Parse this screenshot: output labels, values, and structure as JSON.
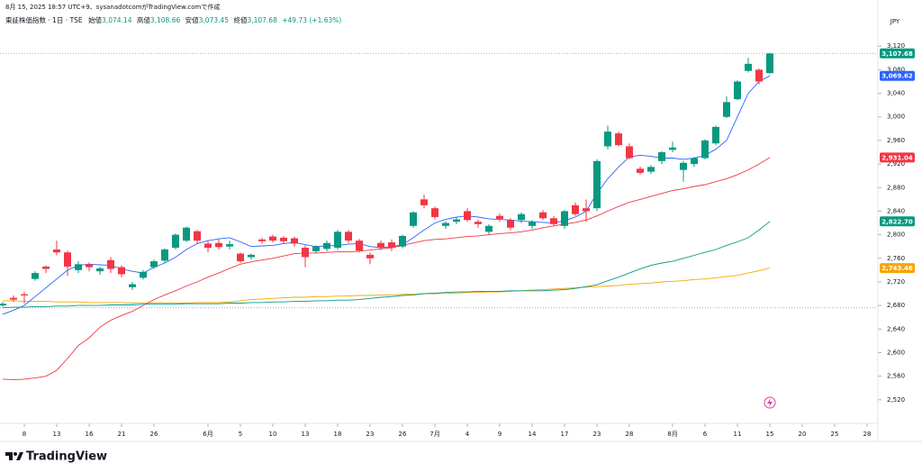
{
  "header": {
    "created": "8月 15, 2025 18:57 UTC+9、sysanadotcomがTradingView.comで作成"
  },
  "legend": {
    "open_label": "始値",
    "open_value": "3,074.14",
    "high_label": "高値",
    "high_value": "3,108.66",
    "low_label": "安値",
    "low_value": "3,073.45",
    "close_label": "終値",
    "close_value": "3,107.68",
    "change": "+49.73 (+1.63%)"
  },
  "footer": {
    "logo_text": "TradingView"
  },
  "chart_data": {
    "type": "candlestick",
    "title": "東証株価指数 · 1日 · TSE",
    "currency": "JPY",
    "up_color": "#089981",
    "down_color": "#f23645",
    "last_label": "3,107.68",
    "reference_line": 2676,
    "grid": false,
    "ylim": [
      2480,
      3183
    ],
    "yticks": [
      {
        "value": 2520,
        "label": "2,520"
      },
      {
        "value": 2560,
        "label": "2,560"
      },
      {
        "value": 2600,
        "label": "2,600"
      },
      {
        "value": 2640,
        "label": "2,640"
      },
      {
        "value": 2680,
        "label": "2,680"
      },
      {
        "value": 2720,
        "label": "2,720"
      },
      {
        "value": 2760,
        "label": "2,760"
      },
      {
        "value": 2800,
        "label": "2,800"
      },
      {
        "value": 2840,
        "label": "2,840"
      },
      {
        "value": 2880,
        "label": "2,880"
      },
      {
        "value": 2920,
        "label": "2,920"
      },
      {
        "value": 2960,
        "label": "2,960"
      },
      {
        "value": 3000,
        "label": "3,000"
      },
      {
        "value": 3040,
        "label": "3,040"
      },
      {
        "value": 3080,
        "label": "3,080"
      },
      {
        "value": 3120,
        "label": "3,120"
      }
    ],
    "categories": [
      null,
      null,
      "8",
      null,
      null,
      "13",
      null,
      null,
      "16",
      null,
      null,
      "21",
      null,
      null,
      "26",
      null,
      null,
      null,
      null,
      "6月",
      null,
      null,
      "5",
      null,
      null,
      "10",
      null,
      null,
      "13",
      null,
      null,
      "18",
      null,
      null,
      "23",
      null,
      null,
      "26",
      null,
      null,
      "7月",
      null,
      null,
      "4",
      null,
      null,
      "9",
      null,
      null,
      "14",
      null,
      null,
      "17",
      null,
      null,
      "23",
      null,
      null,
      "28",
      null,
      null,
      null,
      "8月",
      null,
      null,
      "6",
      null,
      null,
      "11",
      null,
      null,
      "15",
      null,
      null,
      "20",
      null,
      null,
      "25",
      null,
      null,
      "28"
    ],
    "open": [
      2680,
      2693,
      2699,
      2725,
      2746,
      2775,
      2770,
      2740,
      2750,
      2738,
      2757,
      2745,
      2711,
      2727,
      2745,
      2756,
      2778,
      2790,
      2806,
      2785,
      2786,
      2780,
      2768,
      2762,
      2792,
      2797,
      2795,
      2794,
      2778,
      2772,
      2776,
      2778,
      2805,
      2790,
      2766,
      2786,
      2787,
      2780,
      2815,
      2860,
      2845,
      2815,
      2822,
      2840,
      2822,
      2805,
      2832,
      2825,
      2825,
      2815,
      2838,
      2828,
      2815,
      2850,
      2845,
      2845,
      2950,
      2972,
      2950,
      2912,
      2907,
      2925,
      2944,
      2910,
      2920,
      2930,
      2955,
      3000,
      3030,
      3078,
      3080,
      3074.14,
      null,
      null,
      null,
      null,
      null,
      null,
      null,
      null,
      null
    ],
    "high": [
      2686,
      2697,
      2703,
      2738,
      2748,
      2790,
      2773,
      2755,
      2753,
      2746,
      2762,
      2748,
      2720,
      2740,
      2758,
      2777,
      2802,
      2814,
      2808,
      2790,
      2792,
      2790,
      2770,
      2768,
      2795,
      2800,
      2798,
      2797,
      2782,
      2782,
      2790,
      2808,
      2808,
      2793,
      2770,
      2790,
      2792,
      2800,
      2840,
      2868,
      2848,
      2823,
      2830,
      2845,
      2826,
      2818,
      2836,
      2828,
      2838,
      2825,
      2842,
      2832,
      2842,
      2855,
      2860,
      2928,
      2985,
      2975,
      2955,
      2916,
      2918,
      2942,
      2958,
      2925,
      2932,
      2962,
      2985,
      3035,
      3062,
      3100,
      3082,
      3108.66,
      null,
      null,
      null,
      null,
      null,
      null,
      null,
      null,
      null
    ],
    "low": [
      2678,
      2686,
      2683,
      2722,
      2735,
      2765,
      2730,
      2735,
      2738,
      2732,
      2735,
      2728,
      2706,
      2724,
      2742,
      2752,
      2775,
      2788,
      2785,
      2770,
      2775,
      2775,
      2752,
      2758,
      2785,
      2787,
      2785,
      2780,
      2745,
      2768,
      2772,
      2775,
      2786,
      2770,
      2750,
      2774,
      2772,
      2777,
      2812,
      2845,
      2826,
      2810,
      2818,
      2822,
      2812,
      2800,
      2822,
      2808,
      2820,
      2810,
      2825,
      2815,
      2810,
      2832,
      2822,
      2840,
      2945,
      2950,
      2928,
      2902,
      2903,
      2920,
      2940,
      2890,
      2915,
      2928,
      2952,
      2998,
      3028,
      3075,
      3055,
      3073.45,
      null,
      null,
      null,
      null,
      null,
      null,
      null,
      null,
      null
    ],
    "close": [
      2683,
      2690,
      2697,
      2735,
      2742,
      2770,
      2746,
      2750,
      2745,
      2743,
      2742,
      2733,
      2716,
      2737,
      2755,
      2775,
      2800,
      2812,
      2790,
      2778,
      2779,
      2784,
      2755,
      2766,
      2789,
      2790,
      2789,
      2785,
      2762,
      2780,
      2786,
      2805,
      2790,
      2773,
      2760,
      2778,
      2778,
      2798,
      2838,
      2850,
      2830,
      2820,
      2826,
      2825,
      2818,
      2815,
      2827,
      2812,
      2835,
      2822,
      2828,
      2818,
      2840,
      2835,
      2840,
      2925,
      2975,
      2952,
      2930,
      2905,
      2915,
      2940,
      2948,
      2922,
      2930,
      2960,
      2983,
      3025,
      3060,
      3090,
      3060,
      3107.68,
      null,
      null,
      null,
      null,
      null,
      null,
      null,
      null,
      null
    ],
    "series": [
      {
        "color": "#f7a600",
        "last_label": "2,743.46",
        "values": [
          2688,
          2688,
          2687,
          2687,
          2687,
          2686,
          2686,
          2686,
          2685,
          2685,
          2685,
          2685,
          2684,
          2684,
          2684,
          2684,
          2684,
          2684,
          2685,
          2685,
          2685,
          2686,
          2688,
          2690,
          2691,
          2692,
          2693,
          2694,
          2694,
          2695,
          2695,
          2696,
          2696,
          2697,
          2697,
          2698,
          2698,
          2699,
          2699,
          2700,
          2700,
          2701,
          2701,
          2702,
          2702,
          2703,
          2703,
          2704,
          2705,
          2706,
          2707,
          2708,
          2709,
          2710,
          2711,
          2712,
          2713,
          2714,
          2716,
          2717,
          2718,
          2720,
          2721,
          2722,
          2724,
          2725,
          2727,
          2729,
          2731,
          2735,
          2739,
          2743.46,
          null,
          null,
          null,
          null,
          null,
          null,
          null,
          null,
          null
        ]
      },
      {
        "color": "#089981",
        "last_label": "2,822.70",
        "values": [
          2676,
          2677,
          2677,
          2678,
          2678,
          2679,
          2679,
          2680,
          2680,
          2680,
          2681,
          2681,
          2681,
          2682,
          2682,
          2682,
          2682,
          2683,
          2683,
          2683,
          2683,
          2684,
          2684,
          2685,
          2685,
          2686,
          2686,
          2687,
          2687,
          2688,
          2688,
          2689,
          2689,
          2690,
          2692,
          2694,
          2695,
          2697,
          2698,
          2700,
          2701,
          2702,
          2703,
          2703,
          2704,
          2704,
          2704,
          2705,
          2705,
          2705,
          2705,
          2706,
          2707,
          2709,
          2712,
          2715,
          2722,
          2728,
          2735,
          2742,
          2748,
          2752,
          2755,
          2760,
          2765,
          2770,
          2775,
          2782,
          2788,
          2795,
          2808,
          2822.7,
          null,
          null,
          null,
          null,
          null,
          null,
          null,
          null,
          null
        ]
      },
      {
        "color": "#f23645",
        "last_label": "2,931.04",
        "values": [
          2555,
          2554,
          2555,
          2557,
          2560,
          2570,
          2590,
          2612,
          2625,
          2643,
          2655,
          2663,
          2670,
          2680,
          2690,
          2698,
          2705,
          2713,
          2720,
          2728,
          2735,
          2743,
          2750,
          2754,
          2757,
          2760,
          2764,
          2768,
          2769,
          2769,
          2770,
          2771,
          2771,
          2772,
          2774,
          2776,
          2778,
          2782,
          2786,
          2790,
          2792,
          2793,
          2795,
          2797,
          2798,
          2800,
          2802,
          2803,
          2805,
          2808,
          2812,
          2815,
          2818,
          2821,
          2825,
          2832,
          2840,
          2848,
          2855,
          2860,
          2865,
          2870,
          2875,
          2878,
          2882,
          2885,
          2890,
          2895,
          2902,
          2910,
          2920,
          2931.04,
          null,
          null,
          null,
          null,
          null,
          null,
          null,
          null,
          null
        ]
      },
      {
        "color": "#2962ff",
        "last_label": "3,069.62",
        "values": [
          2665,
          2672,
          2680,
          2695,
          2710,
          2725,
          2740,
          2748,
          2750,
          2749,
          2748,
          2742,
          2738,
          2735,
          2745,
          2752,
          2762,
          2775,
          2785,
          2790,
          2793,
          2795,
          2788,
          2780,
          2781,
          2782,
          2785,
          2787,
          2783,
          2780,
          2781,
          2782,
          2784,
          2785,
          2780,
          2778,
          2780,
          2783,
          2795,
          2808,
          2820,
          2826,
          2830,
          2832,
          2830,
          2827,
          2826,
          2825,
          2823,
          2822,
          2821,
          2820,
          2824,
          2830,
          2840,
          2870,
          2895,
          2915,
          2932,
          2935,
          2933,
          2930,
          2930,
          2928,
          2930,
          2935,
          2945,
          2960,
          3000,
          3040,
          3060,
          3069.62,
          null,
          null,
          null,
          null,
          null,
          null,
          null,
          null,
          null
        ]
      }
    ]
  }
}
